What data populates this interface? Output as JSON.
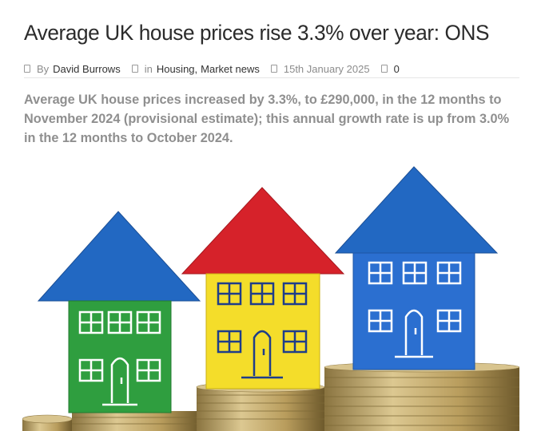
{
  "article": {
    "title": "Average UK house prices rise 3.3% over year: ONS",
    "meta": {
      "by_prefix": "By",
      "author": "David Burrows",
      "in_prefix": "in",
      "categories": [
        "Housing",
        "Market news"
      ],
      "category_separator": ",",
      "date": "15th January 2025",
      "comments": "0"
    },
    "lead": "Average UK house prices increased by 3.3%, to £290,000, in the 12 months to November 2024 (provisional estimate); this annual growth rate is up from 3.0% in the 12 months to October 2024.",
    "image": {
      "subject": "Toy houses on coin stacks",
      "houses": [
        {
          "body_color": "#2f9e3f",
          "roof_color": "#2268c2"
        },
        {
          "body_color": "#f4dd2a",
          "roof_color": "#d6222a"
        },
        {
          "body_color": "#2b6fd0",
          "roof_color": "#2268c2"
        }
      ],
      "coin_color": "#c9b27a"
    }
  }
}
